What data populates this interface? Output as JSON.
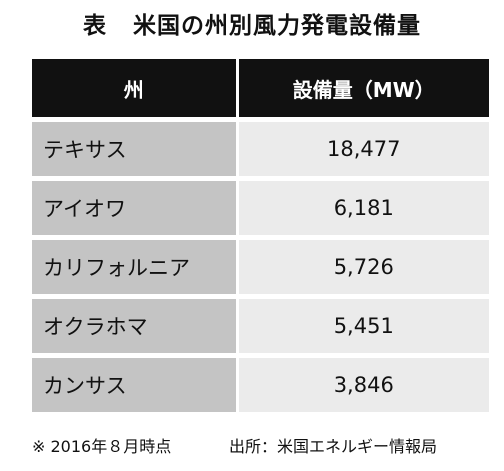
{
  "title": {
    "prefix": "表",
    "text": "米国の州別風力発電設備量"
  },
  "table": {
    "headers": {
      "state": "州",
      "capacity": "設備量（MW）"
    },
    "rows": [
      {
        "state": "テキサス",
        "capacity": "18,477"
      },
      {
        "state": "アイオワ",
        "capacity": "6,181"
      },
      {
        "state": "カリフォルニア",
        "capacity": "5,726"
      },
      {
        "state": "オクラホマ",
        "capacity": "5,451"
      },
      {
        "state": "カンサス",
        "capacity": "3,846"
      }
    ]
  },
  "footer": {
    "note": "※ 2016年８月時点",
    "source": "出所：米国エネルギー情報局"
  },
  "colors": {
    "header_background": "#111111",
    "state_cell_background": "#c4c4c4",
    "value_cell_background": "#ebebeb"
  }
}
